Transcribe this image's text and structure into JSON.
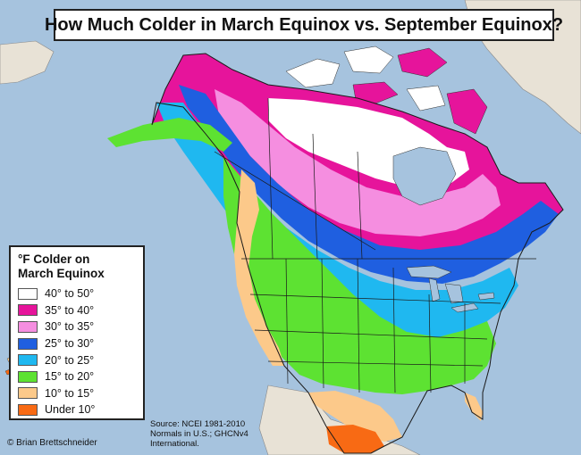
{
  "title": "How Much Colder in March Equinox vs. September Equinox?",
  "legend": {
    "title_lines": [
      "°F Colder on",
      "March Equinox"
    ],
    "items": [
      {
        "label": "40° to 50°",
        "color": "#ffffff"
      },
      {
        "label": "35° to 40°",
        "color": "#e6149b"
      },
      {
        "label": "30° to 35°",
        "color": "#f58ee0"
      },
      {
        "label": "25° to 30°",
        "color": "#1f5fe0"
      },
      {
        "label": "20° to 25°",
        "color": "#1fb8f0"
      },
      {
        "label": "15° to 20°",
        "color": "#5de232"
      },
      {
        "label": "10° to 15°",
        "color": "#fcc98a"
      },
      {
        "label": "Under 10°",
        "color": "#f86a14"
      }
    ]
  },
  "source_lines": [
    "Source: NCEI 1981-2010",
    "Normals in U.S.; GHCNv4",
    "International."
  ],
  "credit": "© Brian Brettschneider",
  "colors": {
    "ocean": "#a6c3de",
    "foreign_land": "#e8e2d6",
    "border": "#1a1a1a"
  }
}
